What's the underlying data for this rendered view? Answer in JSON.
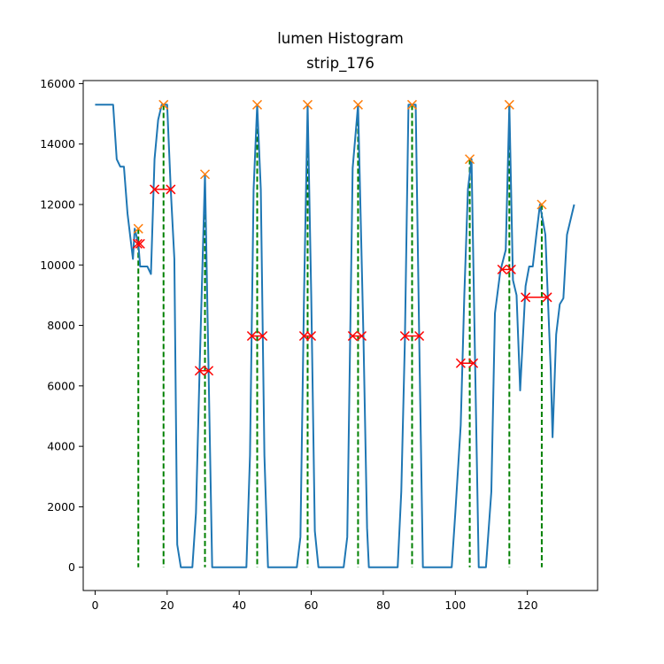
{
  "chart_data": {
    "type": "line",
    "title": "lumen Histogram",
    "subtitle": "strip_176",
    "xlabel": "",
    "ylabel": "",
    "xlim": [
      -3.3,
      139.5
    ],
    "ylim": [
      -770,
      16100
    ],
    "xticks": [
      0,
      20,
      40,
      60,
      80,
      100,
      120
    ],
    "yticks": [
      0,
      2000,
      4000,
      6000,
      8000,
      10000,
      12000,
      14000,
      16000
    ],
    "grid": false,
    "colors": {
      "line": "#1f77b4",
      "peak_marker": "#ff7f0e",
      "width_marker": "#ff0000",
      "vline": "#008000"
    },
    "series": [
      {
        "points": [
          [
            0,
            15300
          ],
          [
            5,
            15300
          ],
          [
            6,
            13500
          ],
          [
            7,
            13250
          ],
          [
            8,
            13250
          ],
          [
            9,
            11700
          ],
          [
            10.5,
            10200
          ],
          [
            11,
            11200
          ],
          [
            12,
            10700
          ],
          [
            12.5,
            9950
          ],
          [
            14.5,
            9950
          ],
          [
            15.5,
            9700
          ],
          [
            16.5,
            13500
          ],
          [
            17.5,
            14800
          ],
          [
            18.5,
            15300
          ],
          [
            20,
            15300
          ],
          [
            21,
            12500
          ],
          [
            22,
            10200
          ],
          [
            22.8,
            750
          ],
          [
            23.8,
            0
          ],
          [
            27,
            0
          ],
          [
            28,
            1800
          ],
          [
            29,
            6500
          ],
          [
            30.5,
            13000
          ],
          [
            32.5,
            0
          ],
          [
            42,
            0
          ],
          [
            43,
            3700
          ],
          [
            44,
            12500
          ],
          [
            45,
            15300
          ],
          [
            46,
            12500
          ],
          [
            47,
            3700
          ],
          [
            48,
            0
          ],
          [
            56,
            0
          ],
          [
            57,
            1000
          ],
          [
            58,
            9000
          ],
          [
            59,
            15300
          ],
          [
            60,
            9000
          ],
          [
            61,
            1200
          ],
          [
            62,
            0
          ],
          [
            69,
            0
          ],
          [
            70,
            1000
          ],
          [
            71.5,
            13200
          ],
          [
            73,
            15300
          ],
          [
            74.5,
            7600
          ],
          [
            75.5,
            1300
          ],
          [
            76,
            0
          ],
          [
            84,
            0
          ],
          [
            85,
            2500
          ],
          [
            86,
            7500
          ],
          [
            87,
            15300
          ],
          [
            89,
            15300
          ],
          [
            90,
            7400
          ],
          [
            91,
            0
          ],
          [
            99,
            0
          ],
          [
            100,
            1800
          ],
          [
            101.5,
            4700
          ],
          [
            102.5,
            9000
          ],
          [
            103.5,
            12500
          ],
          [
            104.5,
            13500
          ],
          [
            105.5,
            6700
          ],
          [
            106.5,
            0
          ],
          [
            108.5,
            0
          ],
          [
            110,
            2500
          ],
          [
            111,
            8400
          ],
          [
            112.5,
            9800
          ],
          [
            114,
            10500
          ],
          [
            115,
            15300
          ],
          [
            116,
            9500
          ],
          [
            117,
            9000
          ],
          [
            118,
            5850
          ],
          [
            119.5,
            9300
          ],
          [
            120.5,
            9950
          ],
          [
            121.5,
            9950
          ],
          [
            122.5,
            11000
          ],
          [
            123.5,
            12000
          ],
          [
            125,
            11000
          ],
          [
            126.5,
            6500
          ],
          [
            127,
            4300
          ],
          [
            128,
            7700
          ],
          [
            129,
            8700
          ],
          [
            130,
            8900
          ],
          [
            131,
            11000
          ],
          [
            133,
            12000
          ]
        ]
      }
    ],
    "peaks": [
      {
        "x": 12,
        "y": 11200,
        "y_width": 10700,
        "x_left": 11.8,
        "x_right": 12.5
      },
      {
        "x": 19,
        "y": 15300,
        "y_width": 12500,
        "x_left": 16.5,
        "x_right": 21
      },
      {
        "x": 30.5,
        "y": 13000,
        "y_width": 6500,
        "x_left": 29,
        "x_right": 31.5
      },
      {
        "x": 45,
        "y": 15300,
        "y_width": 7650,
        "x_left": 43.5,
        "x_right": 46.5
      },
      {
        "x": 59,
        "y": 15300,
        "y_width": 7650,
        "x_left": 58,
        "x_right": 60
      },
      {
        "x": 73,
        "y": 15300,
        "y_width": 7650,
        "x_left": 71.5,
        "x_right": 74
      },
      {
        "x": 88,
        "y": 15300,
        "y_width": 7650,
        "x_left": 86,
        "x_right": 90
      },
      {
        "x": 104,
        "y": 13500,
        "y_width": 6750,
        "x_left": 101.5,
        "x_right": 105
      },
      {
        "x": 115,
        "y": 15300,
        "y_width": 9850,
        "x_left": 113,
        "x_right": 115.5
      },
      {
        "x": 124,
        "y": 12000,
        "y_width": 8930,
        "x_left": 119.5,
        "x_right": 125.5
      }
    ]
  }
}
